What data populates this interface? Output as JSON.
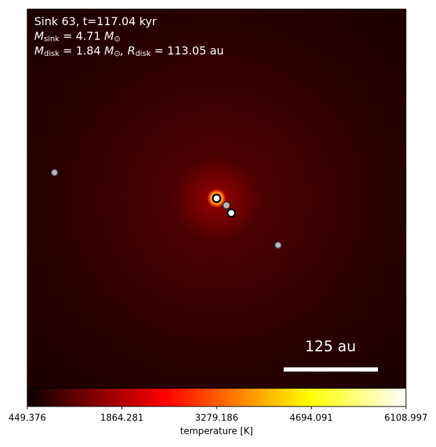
{
  "chart_data": {
    "type": "heatmap",
    "annotations": [
      [
        {
          "text": "Sink 63, t=117.04 kyr"
        }
      ],
      [
        {
          "text": "M"
        },
        {
          "text": "sink",
          "sub": true
        },
        {
          "text": " = 4.71 "
        },
        {
          "text": "M"
        },
        {
          "text": "⊙",
          "sub": true
        }
      ],
      [
        {
          "text": "M"
        },
        {
          "text": "disk",
          "sub": true
        },
        {
          "text": " = 1.84 "
        },
        {
          "text": "M"
        },
        {
          "text": "⊙",
          "sub": true
        },
        {
          "text": ", R"
        },
        {
          "text": "disk",
          "sub": true
        },
        {
          "text": " = 113.05 au"
        }
      ]
    ],
    "scale_bar_label": "125 au",
    "colorbar": {
      "label": "temperature [K]",
      "colormap": "hot",
      "clim": [
        449.376,
        6108.997
      ],
      "ticks": [
        449.376,
        1864.281,
        3279.186,
        4694.091,
        6108.997
      ]
    }
  }
}
